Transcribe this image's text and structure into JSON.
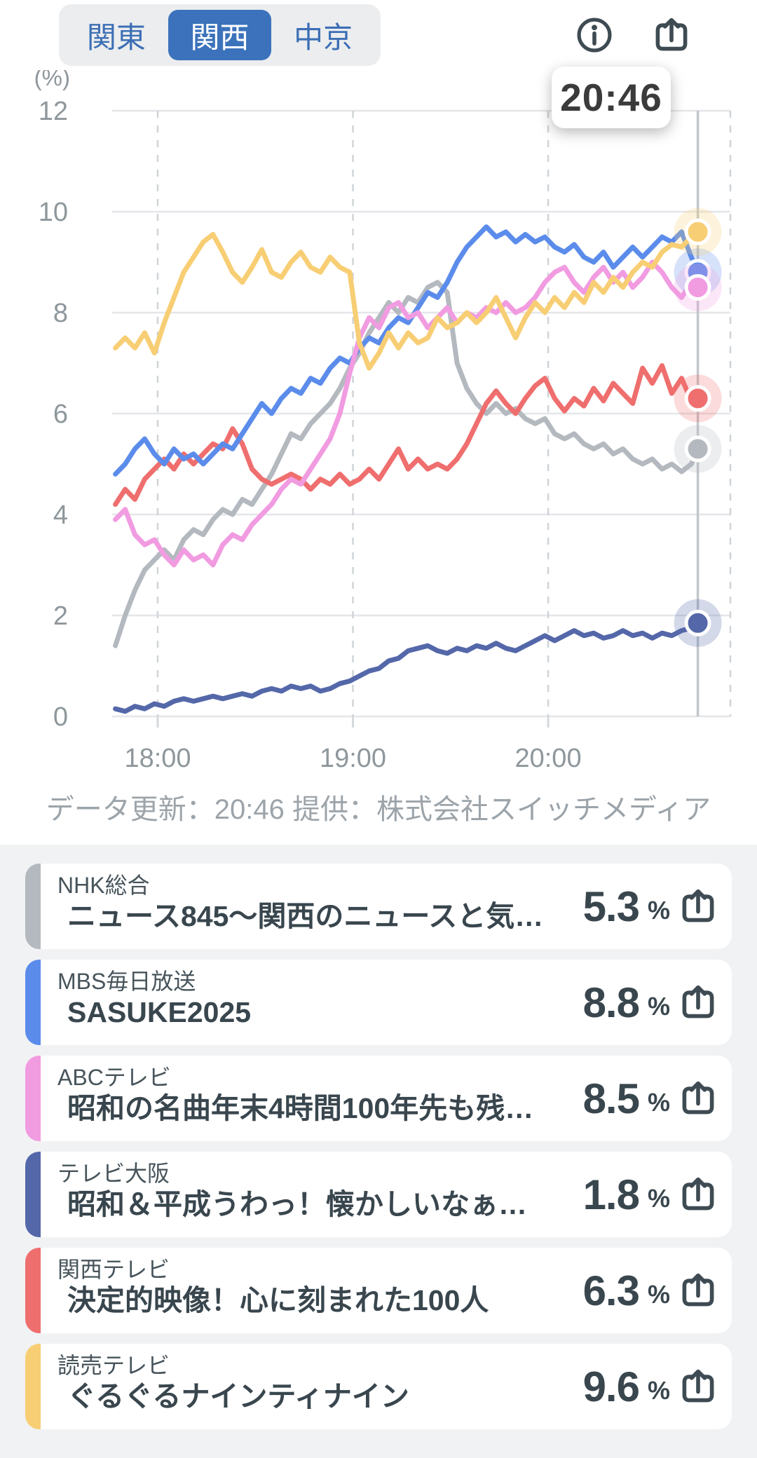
{
  "header": {
    "tabs": [
      {
        "label": "関東",
        "selected": false
      },
      {
        "label": "関西",
        "selected": true
      },
      {
        "label": "中京",
        "selected": false
      }
    ],
    "selected_tab_color": "#3B72BB",
    "tab_text_color": "#3D6FB5"
  },
  "tooltip": {
    "time": "20:46"
  },
  "caption": "データ更新：20:46 提供：株式会社スイッチメディア",
  "chart_data": {
    "type": "line",
    "unit_label": "(%)",
    "ylim": [
      0,
      12
    ],
    "y_ticks": [
      0,
      2,
      4,
      6,
      8,
      10,
      12
    ],
    "x_ticks": [
      {
        "label": "18:00",
        "min": 60
      },
      {
        "label": "19:00",
        "min": 120
      },
      {
        "label": "20:00",
        "min": 180
      }
    ],
    "x_min": 46,
    "x_max": 236,
    "cursor_min": 226,
    "cursor_label": "20:46",
    "grid": true,
    "legend_position": "none",
    "t": [
      47,
      50,
      53,
      56,
      59,
      62,
      65,
      68,
      71,
      74,
      77,
      80,
      83,
      86,
      89,
      92,
      95,
      98,
      101,
      104,
      107,
      110,
      113,
      116,
      119,
      122,
      125,
      128,
      131,
      134,
      137,
      140,
      143,
      146,
      149,
      152,
      155,
      158,
      161,
      164,
      167,
      170,
      173,
      176,
      179,
      182,
      185,
      188,
      191,
      194,
      197,
      200,
      203,
      206,
      209,
      212,
      215,
      218,
      221,
      224,
      226
    ],
    "series": [
      {
        "name": "NHK総合",
        "color": "#B4B9BF",
        "end_value": 5.3,
        "values": [
          1.4,
          2.0,
          2.5,
          2.9,
          3.1,
          3.3,
          3.1,
          3.5,
          3.7,
          3.6,
          3.9,
          4.1,
          4.0,
          4.3,
          4.2,
          4.5,
          4.8,
          5.2,
          5.6,
          5.5,
          5.8,
          6.0,
          6.2,
          6.5,
          6.9,
          7.2,
          7.6,
          7.9,
          8.2,
          8.0,
          8.3,
          8.2,
          8.5,
          8.6,
          8.4,
          7.0,
          6.5,
          6.2,
          6.0,
          6.2,
          6.0,
          6.1,
          5.9,
          5.8,
          5.9,
          5.6,
          5.5,
          5.6,
          5.4,
          5.3,
          5.4,
          5.2,
          5.3,
          5.1,
          5.0,
          5.1,
          4.9,
          5.0,
          4.85,
          5.0,
          5.3
        ]
      },
      {
        "name": "関西テレビ",
        "color": "#EF6E6E",
        "end_value": 6.3,
        "values": [
          4.2,
          4.5,
          4.3,
          4.7,
          4.9,
          5.1,
          4.9,
          5.2,
          5.0,
          5.2,
          5.4,
          5.3,
          5.7,
          5.4,
          4.9,
          4.7,
          4.6,
          4.7,
          4.8,
          4.7,
          4.5,
          4.7,
          4.6,
          4.8,
          4.6,
          4.7,
          4.9,
          4.7,
          5.0,
          5.3,
          4.9,
          5.1,
          4.9,
          5.0,
          4.9,
          5.1,
          5.4,
          5.8,
          6.2,
          6.45,
          6.2,
          6.0,
          6.3,
          6.55,
          6.7,
          6.3,
          6.05,
          6.3,
          6.15,
          6.5,
          6.25,
          6.6,
          6.4,
          6.2,
          6.9,
          6.6,
          6.95,
          6.4,
          6.7,
          6.25,
          6.3
        ]
      },
      {
        "name": "テレビ大阪",
        "color": "#5467A9",
        "end_value": 1.8,
        "values": [
          0.15,
          0.1,
          0.2,
          0.15,
          0.25,
          0.2,
          0.3,
          0.35,
          0.3,
          0.35,
          0.4,
          0.35,
          0.4,
          0.45,
          0.4,
          0.5,
          0.55,
          0.5,
          0.6,
          0.55,
          0.6,
          0.5,
          0.55,
          0.65,
          0.7,
          0.8,
          0.9,
          0.95,
          1.1,
          1.15,
          1.3,
          1.35,
          1.4,
          1.3,
          1.25,
          1.35,
          1.3,
          1.4,
          1.35,
          1.45,
          1.35,
          1.3,
          1.4,
          1.5,
          1.6,
          1.5,
          1.6,
          1.7,
          1.6,
          1.65,
          1.55,
          1.6,
          1.7,
          1.6,
          1.65,
          1.55,
          1.65,
          1.6,
          1.7,
          1.75,
          1.85
        ]
      },
      {
        "name": "MBS毎日放送",
        "color": "#5B8CEB",
        "end_value": 8.8,
        "values": [
          4.8,
          5.0,
          5.3,
          5.5,
          5.2,
          5.0,
          5.3,
          5.1,
          5.2,
          5.0,
          5.2,
          5.4,
          5.3,
          5.6,
          5.9,
          6.2,
          6.0,
          6.3,
          6.5,
          6.4,
          6.7,
          6.6,
          6.9,
          7.1,
          7.0,
          7.3,
          7.5,
          7.4,
          7.7,
          7.9,
          7.8,
          8.1,
          8.4,
          8.3,
          8.6,
          9.0,
          9.3,
          9.5,
          9.7,
          9.5,
          9.6,
          9.4,
          9.55,
          9.4,
          9.5,
          9.3,
          9.2,
          9.35,
          9.1,
          9.0,
          9.2,
          8.9,
          9.1,
          9.3,
          9.1,
          9.3,
          9.5,
          9.4,
          9.6,
          9.1,
          8.8
        ]
      },
      {
        "name": "ABCテレビ",
        "color": "#F19BE1",
        "end_value": 8.5,
        "values": [
          3.9,
          4.1,
          3.6,
          3.4,
          3.5,
          3.2,
          3.0,
          3.3,
          3.1,
          3.2,
          3.0,
          3.4,
          3.6,
          3.5,
          3.8,
          4.0,
          4.2,
          4.5,
          4.7,
          4.6,
          4.9,
          5.2,
          5.5,
          6.0,
          6.8,
          7.5,
          7.9,
          7.7,
          8.1,
          8.2,
          7.9,
          8.0,
          7.7,
          7.9,
          8.1,
          7.8,
          8.0,
          7.9,
          8.1,
          8.0,
          8.2,
          8.0,
          8.1,
          8.3,
          8.6,
          8.8,
          8.9,
          8.6,
          8.4,
          8.7,
          8.9,
          8.6,
          8.8,
          8.5,
          8.7,
          9.0,
          8.8,
          8.5,
          8.3,
          8.6,
          8.5
        ]
      },
      {
        "name": "読売テレビ",
        "color": "#F8CE74",
        "end_value": 9.6,
        "values": [
          7.3,
          7.5,
          7.3,
          7.6,
          7.2,
          7.8,
          8.3,
          8.8,
          9.1,
          9.4,
          9.55,
          9.2,
          8.8,
          8.6,
          8.9,
          9.25,
          8.8,
          8.7,
          9.0,
          9.2,
          8.9,
          8.8,
          9.1,
          8.9,
          8.8,
          7.4,
          6.9,
          7.2,
          7.6,
          7.3,
          7.6,
          7.4,
          7.5,
          7.9,
          7.7,
          7.8,
          8.0,
          7.8,
          8.0,
          8.3,
          7.9,
          7.5,
          7.9,
          8.2,
          8.0,
          8.3,
          8.1,
          8.4,
          8.2,
          8.6,
          8.4,
          8.7,
          8.5,
          8.8,
          9.0,
          8.9,
          9.2,
          9.35,
          9.3,
          9.5,
          9.6
        ]
      }
    ],
    "colors": {
      "grid_line": "#E4E6E9",
      "dashed_line": "#CFD4D8",
      "cursor_line": "#C2C6CA",
      "axis_text": "#8E979C"
    }
  },
  "list": {
    "items": [
      {
        "station": "NHK総合",
        "program": "ニュース845〜関西のニュースと気…",
        "value": "5.3",
        "unit": "%",
        "color": "#B4B9BF"
      },
      {
        "station": "MBS毎日放送",
        "program": "SASUKE2025",
        "value": "8.8",
        "unit": "%",
        "color": "#5B8CEB"
      },
      {
        "station": "ABCテレビ",
        "program": "昭和の名曲年末4時間100年先も残…",
        "value": "8.5",
        "unit": "%",
        "color": "#F19BE1"
      },
      {
        "station": "テレビ大阪",
        "program": "昭和＆平成うわっ！懐かしいなぁ…",
        "value": "1.8",
        "unit": "%",
        "color": "#5467A9"
      },
      {
        "station": "関西テレビ",
        "program": "決定的映像！心に刻まれた100人",
        "value": "6.3",
        "unit": "%",
        "color": "#EF6E6E"
      },
      {
        "station": "読売テレビ",
        "program": "ぐるぐるナインティナイン",
        "value": "9.6",
        "unit": "%",
        "color": "#F8CE74"
      }
    ]
  }
}
